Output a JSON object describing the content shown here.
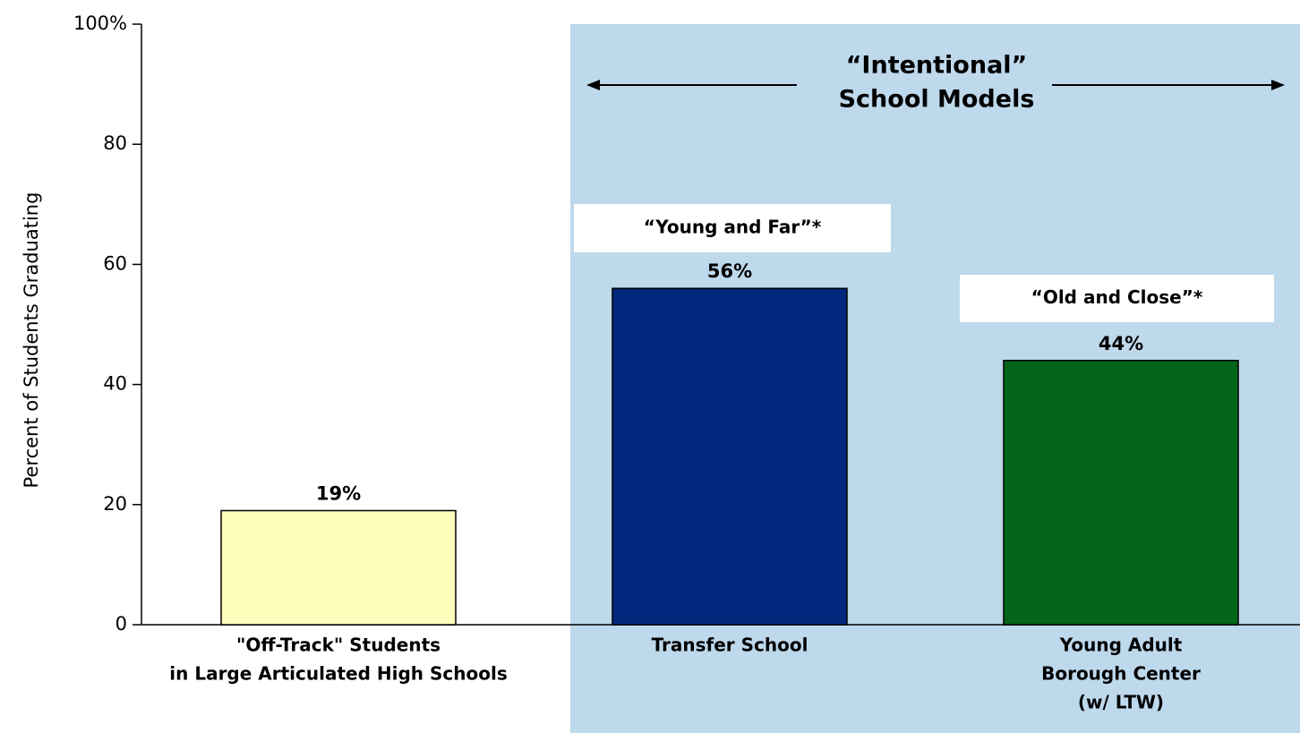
{
  "chart_data": {
    "type": "bar",
    "ylabel": "Percent of Students Graduating",
    "categories": [
      [
        "\"Off-Track\" Students",
        "in Large Articulated High Schools"
      ],
      [
        "Transfer School"
      ],
      [
        "Young Adult",
        "Borough Center",
        "(w/ LTW)"
      ]
    ],
    "values": [
      19,
      56,
      44
    ],
    "value_labels": [
      "19%",
      "56%",
      "44%"
    ],
    "colors": [
      "#fefdbb",
      "#02287d",
      "#04661a"
    ],
    "bar_notes": [
      null,
      "“Young and Far”*",
      "“Old and Close”*"
    ],
    "group_label": [
      "“Intentional”",
      "School Models"
    ],
    "group_color": "#bed8ec",
    "ylim": [
      0,
      100
    ],
    "yticks": [
      0,
      20,
      40,
      60,
      80,
      {
        "value": 100,
        "label": "100%"
      }
    ]
  }
}
